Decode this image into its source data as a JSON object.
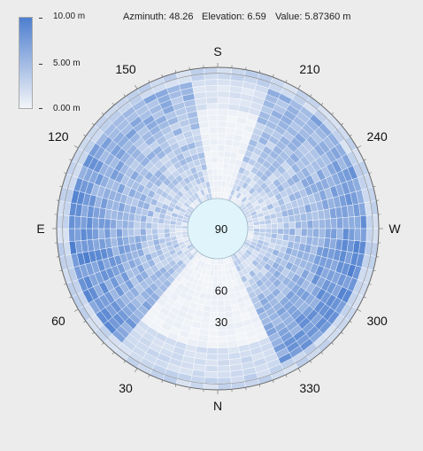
{
  "status": {
    "azimuth": "Azminuth: 48.26",
    "elevation": "Elevation: 6.59",
    "value": "Value: 5.87360 m"
  },
  "colorbar": {
    "labels": [
      "10.00 m",
      "5.00 m",
      "0.00 m"
    ],
    "max_color": "#4e7fcf",
    "min_color": "#f3f5f8"
  },
  "chart_data": {
    "type": "heatmap",
    "projection": "polar",
    "value_range": [
      0,
      10
    ],
    "value_unit": "m",
    "direction_labels": [
      "S",
      "W",
      "N",
      "E"
    ],
    "azimuth_labels": [
      "30",
      "60",
      "120",
      "150",
      "210",
      "240",
      "300",
      "330"
    ],
    "elevation_labels": [
      "90",
      "60",
      "30"
    ],
    "azimuth_sectors": 72,
    "elevation_rings": 22,
    "elevation_range": [
      0,
      90
    ],
    "cursor": {
      "azimuth": 48.26,
      "elevation": 6.59,
      "value": 5.8736
    }
  }
}
